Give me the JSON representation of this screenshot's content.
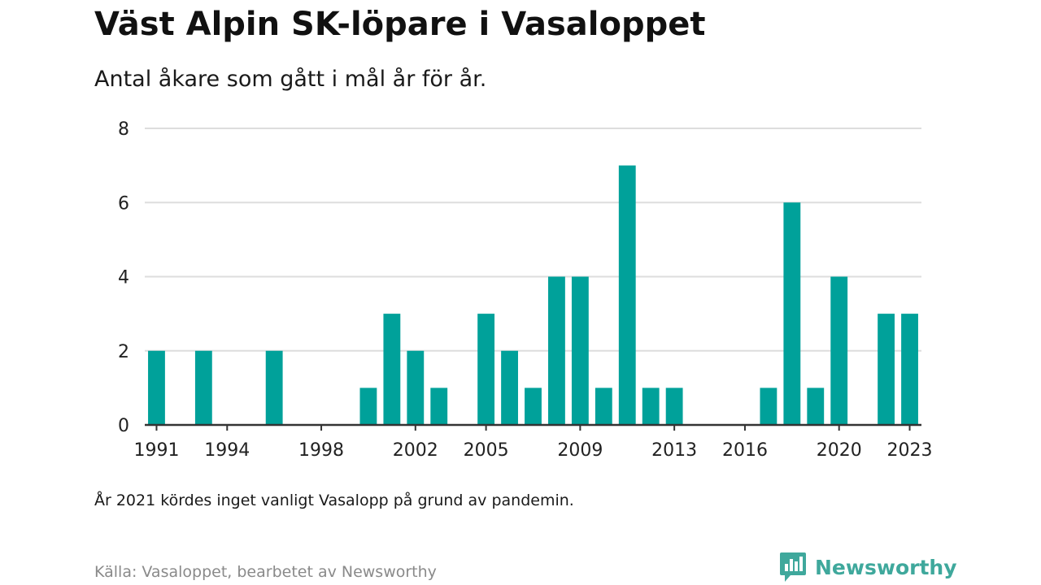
{
  "title": "Väst Alpin SK-löpare i Vasaloppet",
  "subtitle": "Antal åkare som gått i mål år för år.",
  "note": "År 2021 kördes inget vanligt Vasalopp på grund av pandemin.",
  "source": "Källa: Vasaloppet, bearbetet av Newsworthy",
  "brand": {
    "name": "Newsworthy",
    "icon": "newsworthy-logo-icon",
    "color": "#3fa89c"
  },
  "chart_data": {
    "type": "bar",
    "categories": [
      1991,
      1992,
      1993,
      1994,
      1995,
      1996,
      1997,
      1998,
      1999,
      2000,
      2001,
      2002,
      2003,
      2004,
      2005,
      2006,
      2007,
      2008,
      2009,
      2010,
      2011,
      2012,
      2013,
      2014,
      2015,
      2016,
      2017,
      2018,
      2019,
      2020,
      2021,
      2022,
      2023
    ],
    "values": [
      2,
      0,
      2,
      0,
      0,
      2,
      0,
      0,
      0,
      1,
      3,
      2,
      1,
      0,
      3,
      2,
      1,
      4,
      4,
      1,
      7,
      1,
      1,
      0,
      0,
      0,
      1,
      6,
      1,
      4,
      0,
      3,
      3
    ],
    "x_tick_labels": [
      "1991",
      "1994",
      "1998",
      "2002",
      "2005",
      "2009",
      "2013",
      "2016",
      "2020",
      "2023"
    ],
    "y_ticks": [
      0,
      2,
      4,
      6,
      8
    ],
    "ylim": [
      0,
      8
    ],
    "xlabel": "",
    "ylabel": "",
    "grid": true,
    "bar_color": "#00a19a",
    "grid_color": "#dddddd",
    "axis_color": "#333333"
  }
}
